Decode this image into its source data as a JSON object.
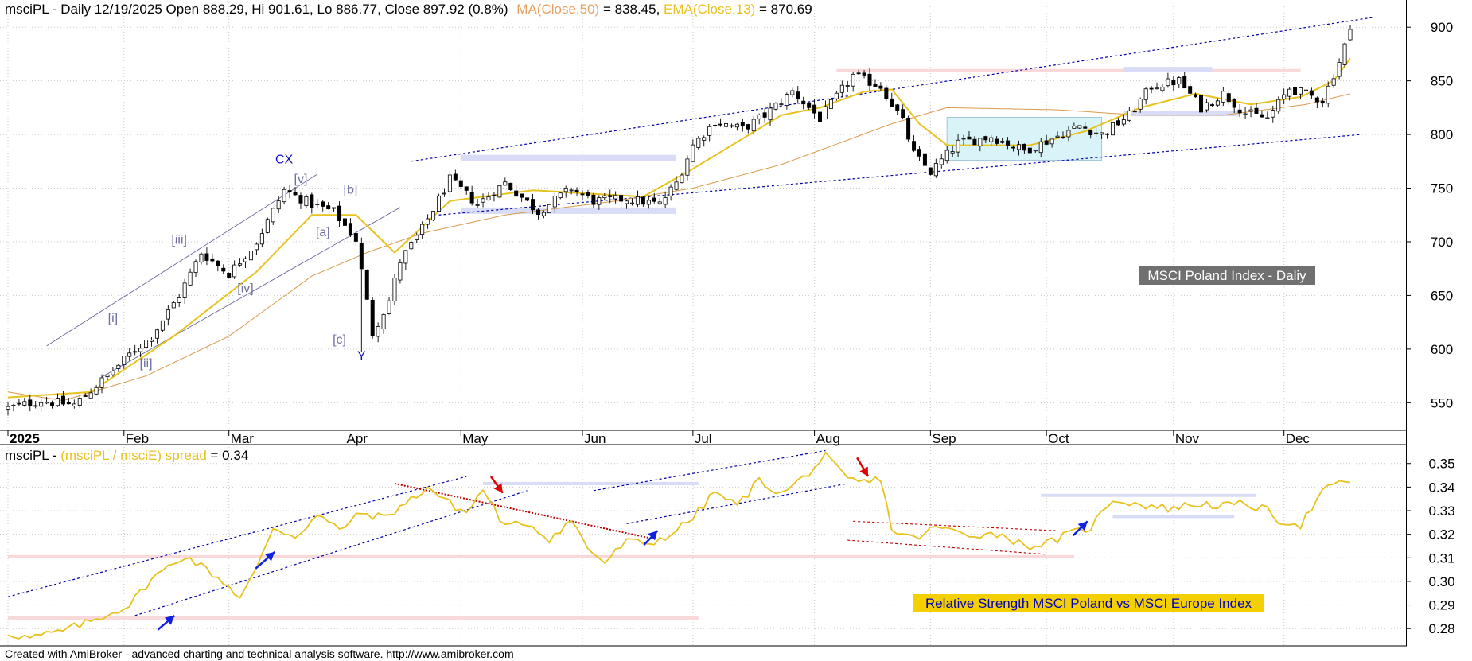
{
  "chart_data": [
    {
      "type": "candlestick",
      "symbol": "msciPL",
      "header": {
        "prefix": "msciPL - Daily 12/19/2025 Open 888.29, Hi 901.61, Lo 886.77, Close 897.92 (0.8%)",
        "ma_label": "MA(Close,50)",
        "ma_value": " = 838.45, ",
        "ema_label": "EMA(Close,13)",
        "ema_value": " = 870.69"
      },
      "last_bar": {
        "date": "12/19/2025",
        "open": 888.29,
        "high": 901.61,
        "low": 886.77,
        "close": 897.92,
        "change_pct": 0.8
      },
      "ma50_last": 838.45,
      "ema13_last": 870.69,
      "ylim": [
        528,
        912
      ],
      "y_ticks": [
        "900",
        "850",
        "800",
        "750",
        "700",
        "650",
        "600",
        "550"
      ],
      "y_tick_values": [
        900,
        850,
        800,
        750,
        700,
        650,
        600,
        550
      ],
      "x_labels": [
        "2025",
        "Feb",
        "Mar",
        "Apr",
        "May",
        "Jun",
        "Jul",
        "Aug",
        "Sep",
        "Oct",
        "Nov",
        "Dec"
      ],
      "x_label_bar_index": [
        0,
        21,
        40,
        61,
        82,
        104,
        124,
        146,
        167,
        188,
        211,
        231
      ],
      "bar_count": 244,
      "close_anchors": [
        [
          0,
          545
        ],
        [
          6,
          552
        ],
        [
          12,
          548
        ],
        [
          18,
          575
        ],
        [
          22,
          595
        ],
        [
          26,
          612
        ],
        [
          31,
          650
        ],
        [
          35,
          690
        ],
        [
          40,
          670
        ],
        [
          45,
          700
        ],
        [
          50,
          748
        ],
        [
          55,
          735
        ],
        [
          59,
          728
        ],
        [
          63,
          702
        ],
        [
          66,
          615
        ],
        [
          69,
          645
        ],
        [
          71,
          682
        ],
        [
          75,
          712
        ],
        [
          80,
          758
        ],
        [
          85,
          735
        ],
        [
          90,
          755
        ],
        [
          96,
          728
        ],
        [
          102,
          750
        ],
        [
          106,
          738
        ],
        [
          112,
          740
        ],
        [
          118,
          735
        ],
        [
          121,
          755
        ],
        [
          124,
          790
        ],
        [
          128,
          812
        ],
        [
          133,
          805
        ],
        [
          137,
          818
        ],
        [
          142,
          840
        ],
        [
          147,
          815
        ],
        [
          150,
          835
        ],
        [
          153,
          855
        ],
        [
          158,
          845
        ],
        [
          162,
          812
        ],
        [
          164,
          782
        ],
        [
          167,
          765
        ],
        [
          172,
          792
        ],
        [
          178,
          798
        ],
        [
          184,
          785
        ],
        [
          189,
          796
        ],
        [
          194,
          808
        ],
        [
          198,
          800
        ],
        [
          203,
          818
        ],
        [
          207,
          845
        ],
        [
          212,
          850
        ],
        [
          216,
          825
        ],
        [
          220,
          838
        ],
        [
          224,
          820
        ],
        [
          228,
          815
        ],
        [
          232,
          843
        ],
        [
          238,
          832
        ],
        [
          241,
          868
        ],
        [
          243,
          898
        ]
      ],
      "ema13_anchors": [
        [
          0,
          555
        ],
        [
          15,
          560
        ],
        [
          30,
          612
        ],
        [
          45,
          672
        ],
        [
          55,
          725
        ],
        [
          63,
          725
        ],
        [
          70,
          690
        ],
        [
          80,
          738
        ],
        [
          95,
          748
        ],
        [
          115,
          742
        ],
        [
          124,
          768
        ],
        [
          140,
          818
        ],
        [
          147,
          825
        ],
        [
          155,
          840
        ],
        [
          160,
          842
        ],
        [
          165,
          810
        ],
        [
          170,
          790
        ],
        [
          185,
          790
        ],
        [
          195,
          803
        ],
        [
          205,
          825
        ],
        [
          215,
          838
        ],
        [
          225,
          828
        ],
        [
          234,
          835
        ],
        [
          240,
          850
        ],
        [
          243,
          871
        ]
      ],
      "ma50_anchors": [
        [
          0,
          560
        ],
        [
          10,
          552
        ],
        [
          25,
          575
        ],
        [
          40,
          612
        ],
        [
          55,
          668
        ],
        [
          65,
          690
        ],
        [
          75,
          708
        ],
        [
          90,
          725
        ],
        [
          110,
          738
        ],
        [
          124,
          750
        ],
        [
          140,
          772
        ],
        [
          160,
          810
        ],
        [
          170,
          825
        ],
        [
          190,
          823
        ],
        [
          205,
          818
        ],
        [
          220,
          818
        ],
        [
          235,
          828
        ],
        [
          243,
          838
        ]
      ],
      "wave_labels": [
        {
          "text": "[i]",
          "bar": 19,
          "y": 625
        },
        {
          "text": "[ii]",
          "bar": 25,
          "y": 583
        },
        {
          "text": "[iii]",
          "bar": 31,
          "y": 698
        },
        {
          "text": "[iv]",
          "bar": 43,
          "y": 653
        },
        {
          "text": "[v]",
          "bar": 53,
          "y": 755
        },
        {
          "text": "CX",
          "bar": 50,
          "y": 773
        },
        {
          "text": "[a]",
          "bar": 57,
          "y": 705
        },
        {
          "text": "[b]",
          "bar": 62,
          "y": 745
        },
        {
          "text": "[c]",
          "bar": 60,
          "y": 605
        },
        {
          "text": "Y",
          "bar": 64,
          "y": 590
        }
      ],
      "annotation": "MSCI Poland Index - Daliy"
    },
    {
      "type": "line",
      "header": {
        "prefix": "msciPL - ",
        "spread_label": "(msciPL / msciE) spread",
        "spread_value": " = 0.34"
      },
      "last_value": 0.34,
      "ylim": [
        0.274,
        0.357
      ],
      "y_ticks": [
        "0.35",
        "0.34",
        "0.33",
        "0.32",
        "0.31",
        "0.30",
        "0.29",
        "0.28"
      ],
      "y_tick_values": [
        0.35,
        0.34,
        0.33,
        0.32,
        0.31,
        0.3,
        0.29,
        0.28
      ],
      "spread_anchors": [
        [
          0,
          0.278
        ],
        [
          4,
          0.276
        ],
        [
          10,
          0.279
        ],
        [
          16,
          0.284
        ],
        [
          22,
          0.29
        ],
        [
          26,
          0.301
        ],
        [
          32,
          0.311
        ],
        [
          36,
          0.305
        ],
        [
          40,
          0.298
        ],
        [
          42,
          0.293
        ],
        [
          45,
          0.305
        ],
        [
          48,
          0.323
        ],
        [
          52,
          0.319
        ],
        [
          56,
          0.328
        ],
        [
          60,
          0.322
        ],
        [
          64,
          0.329
        ],
        [
          68,
          0.327
        ],
        [
          72,
          0.333
        ],
        [
          76,
          0.34
        ],
        [
          80,
          0.333
        ],
        [
          83,
          0.329
        ],
        [
          86,
          0.339
        ],
        [
          90,
          0.323
        ],
        [
          94,
          0.325
        ],
        [
          98,
          0.318
        ],
        [
          102,
          0.326
        ],
        [
          105,
          0.314
        ],
        [
          108,
          0.308
        ],
        [
          112,
          0.317
        ],
        [
          116,
          0.316
        ],
        [
          120,
          0.32
        ],
        [
          124,
          0.327
        ],
        [
          128,
          0.338
        ],
        [
          132,
          0.332
        ],
        [
          136,
          0.343
        ],
        [
          140,
          0.337
        ],
        [
          144,
          0.344
        ],
        [
          148,
          0.353
        ],
        [
          152,
          0.343
        ],
        [
          156,
          0.342
        ],
        [
          158,
          0.344
        ],
        [
          160,
          0.322
        ],
        [
          164,
          0.318
        ],
        [
          168,
          0.323
        ],
        [
          174,
          0.32
        ],
        [
          180,
          0.32
        ],
        [
          184,
          0.315
        ],
        [
          188,
          0.316
        ],
        [
          192,
          0.32
        ],
        [
          196,
          0.323
        ],
        [
          200,
          0.335
        ],
        [
          204,
          0.333
        ],
        [
          210,
          0.331
        ],
        [
          216,
          0.333
        ],
        [
          220,
          0.332
        ],
        [
          224,
          0.333
        ],
        [
          228,
          0.33
        ],
        [
          230,
          0.326
        ],
        [
          234,
          0.324
        ],
        [
          238,
          0.338
        ],
        [
          242,
          0.343
        ],
        [
          243,
          0.342
        ]
      ],
      "annotation": "Relative Strength MSCI Poland vs MSCI Europe Index"
    }
  ],
  "footer": "Created with AmiBroker - advanced charting and technical analysis software. http://www.amibroker.com",
  "colors": {
    "up_candle": "#ffffff",
    "down_candle": "#000000",
    "ema13": "#e8c21e",
    "ma50": "#d99a4c",
    "spread": "#e8c21e",
    "trend_blue": "#0000a8",
    "trend_red": "#c00000",
    "header_ma": "#e8a060",
    "header_ema": "#e8c21e",
    "wave_gray": "#7070a0",
    "wave_blue": "#1010c0",
    "annotation_bg": "#707070",
    "annotation2_bg": "#f5d000",
    "annotation2_text": "#0000c0"
  }
}
